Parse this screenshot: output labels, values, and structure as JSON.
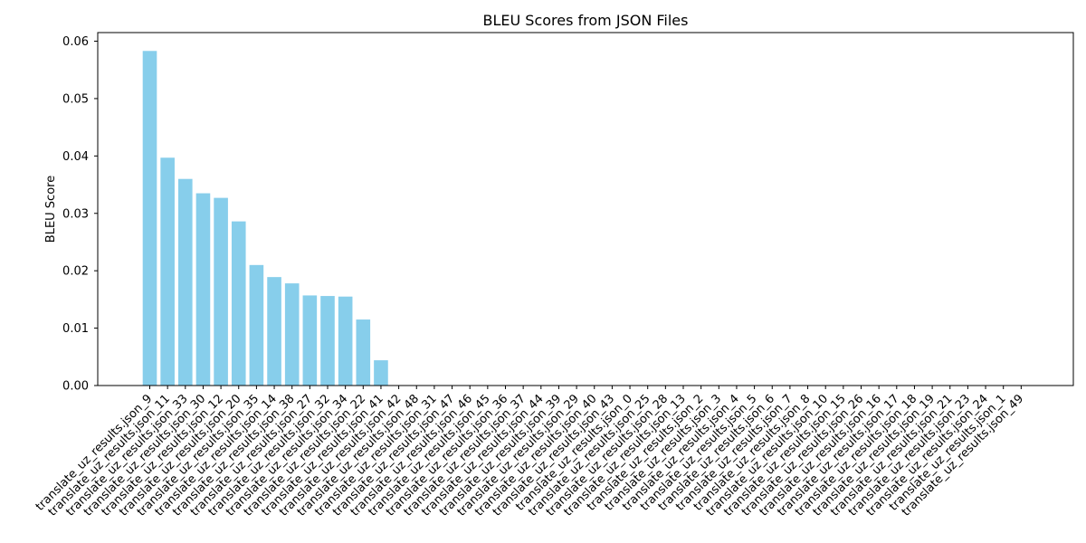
{
  "chart_data": {
    "type": "bar",
    "title": "BLEU Scores from JSON Files",
    "xlabel": "",
    "ylabel": "BLEU Score",
    "ylim": [
      0,
      0.0615
    ],
    "yticks": [
      "0.00",
      "0.01",
      "0.02",
      "0.03",
      "0.04",
      "0.05",
      "0.06"
    ],
    "grid": false,
    "bar_color": "#87ceeb",
    "categories": [
      "translate_uz_results.json_9",
      "translate_uz_results.json_11",
      "translate_uz_results.json_33",
      "translate_uz_results.json_30",
      "translate_uz_results.json_12",
      "translate_uz_results.json_20",
      "translate_uz_results.json_35",
      "translate_uz_results.json_14",
      "translate_uz_results.json_38",
      "translate_uz_results.json_27",
      "translate_uz_results.json_32",
      "translate_uz_results.json_34",
      "translate_uz_results.json_22",
      "translate_uz_results.json_41",
      "translate_uz_results.json_42",
      "translate_uz_results.json_48",
      "translate_uz_results.json_31",
      "translate_uz_results.json_47",
      "translate_uz_results.json_46",
      "translate_uz_results.json_45",
      "translate_uz_results.json_36",
      "translate_uz_results.json_37",
      "translate_uz_results.json_44",
      "translate_uz_results.json_39",
      "translate_uz_results.json_29",
      "translate_uz_results.json_40",
      "translate_uz_results.json_43",
      "translate_uz_results.json_0",
      "translate_uz_results.json_25",
      "translate_uz_results.json_28",
      "translate_uz_results.json_13",
      "translate_uz_results.json_2",
      "translate_uz_results.json_3",
      "translate_uz_results.json_4",
      "translate_uz_results.json_5",
      "translate_uz_results.json_6",
      "translate_uz_results.json_7",
      "translate_uz_results.json_8",
      "translate_uz_results.json_10",
      "translate_uz_results.json_15",
      "translate_uz_results.json_26",
      "translate_uz_results.json_16",
      "translate_uz_results.json_17",
      "translate_uz_results.json_18",
      "translate_uz_results.json_19",
      "translate_uz_results.json_21",
      "translate_uz_results.json_23",
      "translate_uz_results.json_24",
      "translate_uz_results.json_1",
      "translate_uz_results.json_49"
    ],
    "values": [
      0.0583,
      0.0397,
      0.036,
      0.0335,
      0.0327,
      0.0286,
      0.021,
      0.0189,
      0.0178,
      0.0157,
      0.0156,
      0.0155,
      0.0115,
      0.0044,
      0,
      0,
      0,
      0,
      0,
      0,
      0,
      0,
      0,
      0,
      0,
      0,
      0,
      0,
      0,
      0,
      0,
      0,
      0,
      0,
      0,
      0,
      0,
      0,
      0,
      0,
      0,
      0,
      0,
      0,
      0,
      0,
      0,
      0,
      0,
      0
    ]
  }
}
